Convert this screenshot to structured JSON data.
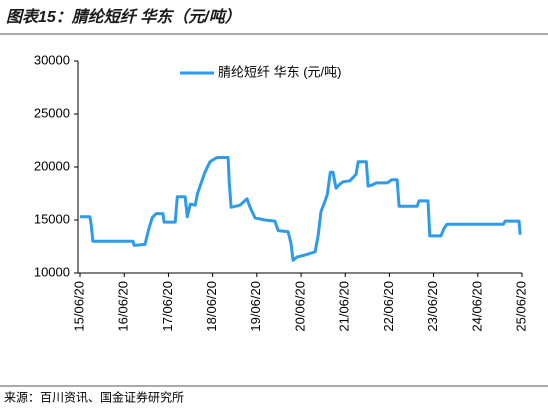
{
  "header": {
    "title": "图表15：腈纶短纤 华东（元/吨）"
  },
  "chart_data": {
    "type": "line",
    "x": [
      "15/06/19",
      "15/09/10",
      "15/09/20",
      "15/10/05",
      "16/08/30",
      "16/09/10",
      "16/12/08",
      "17/01/05",
      "17/02/05",
      "17/03/10",
      "17/05/05",
      "17/05/15",
      "17/08/15",
      "17/09/01",
      "17/11/05",
      "17/11/23",
      "17/12/18",
      "18/01/27",
      "18/02/15",
      "18/04/17",
      "18/05/29",
      "18/07/26",
      "18/10/26",
      "18/11/05",
      "18/11/20",
      "19/02/01",
      "19/03/30",
      "19/04/26",
      "19/06/05",
      "19/08/26",
      "19/11/17",
      "19/12/14",
      "20/03/05",
      "20/03/29",
      "20/04/14",
      "20/05/17",
      "20/07/23",
      "20/10/14",
      "20/11/08",
      "20/12/02",
      "20/12/26",
      "21/01/23",
      "21/02/17",
      "21/03/11",
      "21/04/05",
      "21/05/08",
      "21/06/02",
      "21/07/29",
      "21/09/17",
      "21/10/05",
      "21/12/11",
      "21/12/26",
      "22/01/29",
      "22/03/03",
      "22/06/02",
      "22/07/11",
      "22/08/23",
      "22/09/08",
      "23/02/05",
      "23/02/20",
      "23/05/05",
      "23/05/20",
      "23/08/20",
      "23/09/14",
      "23/10/08",
      "25/01/17",
      "25/02/01",
      "25/05/26",
      "25/06/05"
    ],
    "series": [
      {
        "name": "腈纶短纤 华东 (元/吨)",
        "color": "#2f9be8",
        "values": [
          15300,
          15300,
          14600,
          13000,
          13000,
          12600,
          12700,
          14000,
          15200,
          15600,
          15600,
          14800,
          14800,
          17200,
          17200,
          15300,
          16500,
          16400,
          17500,
          19500,
          20500,
          20900,
          20900,
          18500,
          16200,
          16400,
          17000,
          16200,
          15200,
          15000,
          14900,
          14000,
          13900,
          12800,
          11200,
          11500,
          11700,
          12000,
          13500,
          15800,
          16500,
          17400,
          19500,
          19500,
          18000,
          18400,
          18600,
          18700,
          19300,
          20500,
          20500,
          18200,
          18300,
          18500,
          18500,
          18800,
          18800,
          16300,
          16300,
          16800,
          16800,
          13500,
          13500,
          14200,
          14600,
          14600,
          14900,
          14900,
          13600
        ]
      }
    ],
    "xlim": [
      "15/06/20",
      "25/06/20"
    ],
    "xticks": [
      "15/06/20",
      "16/06/20",
      "17/06/20",
      "18/06/20",
      "19/06/20",
      "20/06/20",
      "21/06/20",
      "22/06/20",
      "23/06/20",
      "24/06/20",
      "25/06/20"
    ],
    "ylim": [
      10000,
      30000
    ],
    "yticks": [
      10000,
      15000,
      20000,
      25000,
      30000
    ],
    "grid": false
  },
  "footer": {
    "source": "来源：百川资讯、国金证券研究所"
  }
}
